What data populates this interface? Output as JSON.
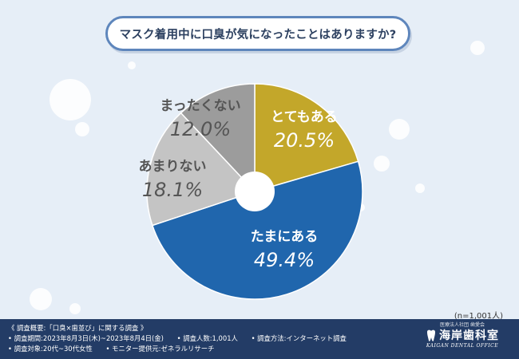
{
  "title": "マスク着用中に口臭が気になったことはありますか?",
  "sample_note": "(n=1,001人)",
  "colors": {
    "background": "#e6eef7",
    "title_border": "#5e86bc",
    "footer": "#233c66",
    "slice_gold": "#c3a72a",
    "slice_blue": "#2066ad",
    "slice_lightgray": "#c4c4c4",
    "slice_gray": "#9c9c9c"
  },
  "chart_data": {
    "type": "pie",
    "title": "マスク着用中に口臭が気になったことはありますか?",
    "start_angle_deg": 0,
    "direction": "clockwise",
    "donut": true,
    "slices": [
      {
        "label": "とてもある",
        "value": 20.5,
        "display": "20.5%",
        "color": "#c3a72a",
        "label_color": "#ffffff"
      },
      {
        "label": "たまにある",
        "value": 49.4,
        "display": "49.4%",
        "color": "#2066ad",
        "label_color": "#ffffff"
      },
      {
        "label": "あまりない",
        "value": 18.1,
        "display": "18.1%",
        "color": "#c4c4c4",
        "label_color": "#555555"
      },
      {
        "label": "まったくない",
        "value": 12.0,
        "display": "12.0%",
        "color": "#9c9c9c",
        "label_color": "#555555"
      }
    ]
  },
  "footer": {
    "row1": "《 調査概要:「口臭×歯並び」に関する調査 》",
    "row2": [
      "• 調査期間:2023年8月3日(木)~2023年8月4日(金)",
      "• 調査人数:1,001人",
      "• 調査方法:インターネット調査"
    ],
    "row3": [
      "• 調査対象:20代~30代女性",
      "• モニター提供元:ゼネラルリサーチ"
    ]
  },
  "logo": {
    "sub": "医療法人社団 歯愛会",
    "name": "海岸歯科室",
    "en": "KAIGAN DENTAL OFFICE",
    "icon": "tooth-icon"
  }
}
